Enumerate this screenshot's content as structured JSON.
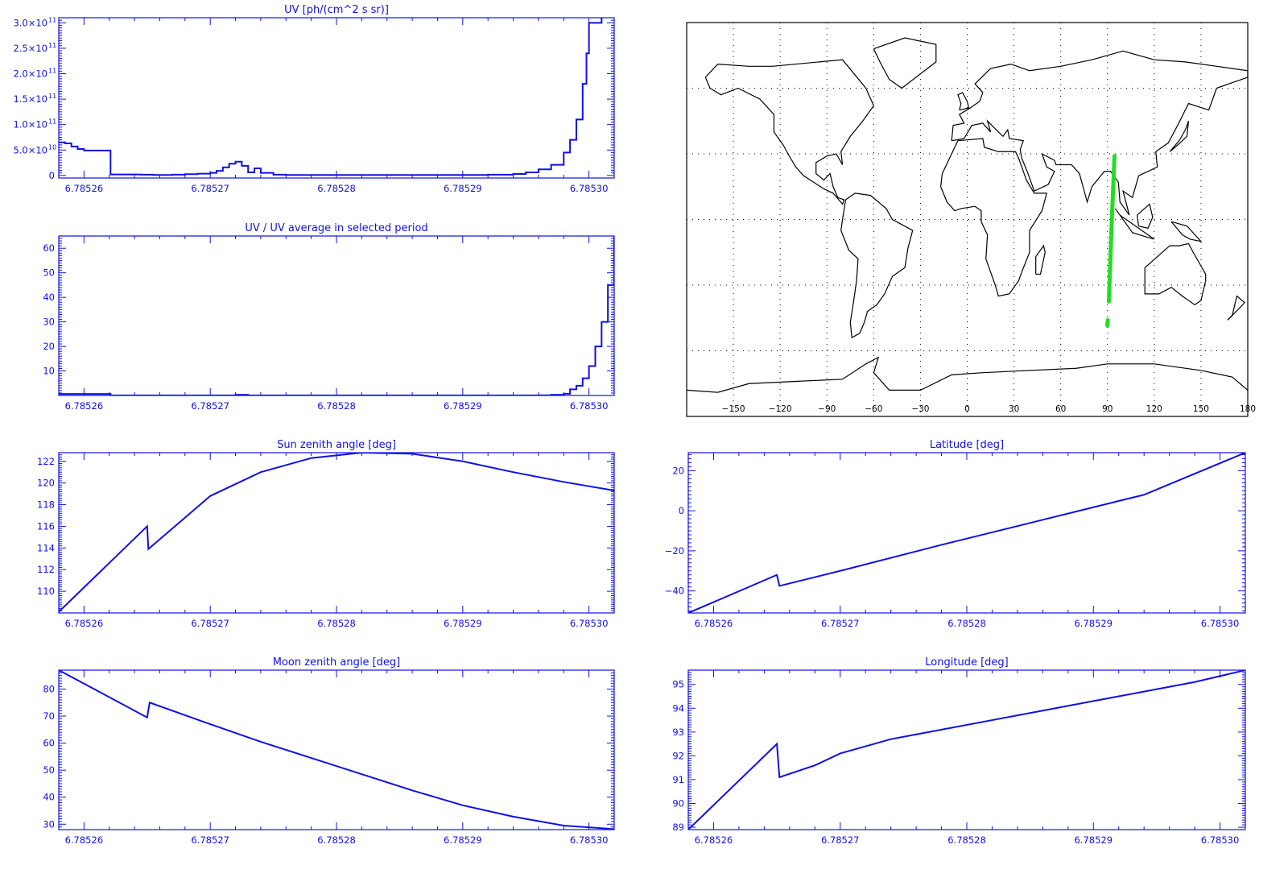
{
  "colors": {
    "axis": "#1010e6",
    "line": "#1010e6",
    "track": "#22dd22",
    "map_lines": "#000000"
  },
  "chart_data": [
    {
      "id": "uv",
      "type": "line",
      "title": "UV [ph/(cm^2 s sr)]",
      "xlim": [
        6.785258,
        6.785302
      ],
      "ylim": [
        -5000000000.0,
        310000000000.0
      ],
      "xticks": [
        6.78526,
        6.78527,
        6.78528,
        6.78529,
        6.7853
      ],
      "xtick_labels": [
        "6.78526",
        "6.78527",
        "6.78528",
        "6.78529",
        "6.78530"
      ],
      "yticks": [
        0,
        50000000000.0,
        100000000000.0,
        150000000000.0,
        200000000000.0,
        250000000000.0,
        300000000000.0
      ],
      "ytick_labels": [
        "0",
        "5.0×10",
        "1.0×10",
        "1.5×10",
        "2.0×10",
        "2.5×10",
        "3.0×10"
      ],
      "ytick_exps": [
        "",
        "10",
        "11",
        "11",
        "11",
        "11",
        "11"
      ],
      "step": true,
      "series": [
        {
          "points": [
            [
              6.785258,
              65000000000.0
            ],
            [
              6.7852585,
              63000000000.0
            ],
            [
              6.785259,
              57000000000.0
            ],
            [
              6.7852595,
              52000000000.0
            ],
            [
              6.78526,
              49000000000.0
            ],
            [
              6.785262,
              49000000000.0
            ],
            [
              6.7852621,
              2000000000.0
            ],
            [
              6.7852645,
              1500000000.0
            ],
            [
              6.7852655,
              1000000000.0
            ],
            [
              6.785267,
              1500000000.0
            ],
            [
              6.785268,
              2500000000.0
            ],
            [
              6.785269,
              3500000000.0
            ],
            [
              6.78527,
              5000000000.0
            ],
            [
              6.7852705,
              9000000000.0
            ],
            [
              6.785271,
              16000000000.0
            ],
            [
              6.7852715,
              23000000000.0
            ],
            [
              6.785272,
              27000000000.0
            ],
            [
              6.7852725,
              19000000000.0
            ],
            [
              6.785273,
              6000000000.0
            ],
            [
              6.7852735,
              14000000000.0
            ],
            [
              6.785274,
              5000000000.0
            ],
            [
              6.785275,
              1500000000.0
            ],
            [
              6.785276,
              1000000000.0
            ],
            [
              6.785285,
              1000000000.0
            ],
            [
              6.785292,
              1500000000.0
            ],
            [
              6.785294,
              3000000000.0
            ],
            [
              6.785295,
              6000000000.0
            ],
            [
              6.785296,
              12000000000.0
            ],
            [
              6.785297,
              21000000000.0
            ],
            [
              6.785298,
              45000000000.0
            ],
            [
              6.7852985,
              70000000000.0
            ],
            [
              6.785299,
              110000000000.0
            ],
            [
              6.7852995,
              180000000000.0
            ],
            [
              6.7852998,
              240000000000.0
            ],
            [
              6.7853,
              300000000000.0
            ],
            [
              6.785301,
              310000000000.0
            ]
          ]
        }
      ]
    },
    {
      "id": "uvratio",
      "type": "line",
      "title": "UV / UV average in selected period",
      "xlim": [
        6.785258,
        6.785302
      ],
      "ylim": [
        0,
        65
      ],
      "xticks": [
        6.78526,
        6.78527,
        6.78528,
        6.78529,
        6.7853
      ],
      "xtick_labels": [
        "6.78526",
        "6.78527",
        "6.78528",
        "6.78529",
        "6.78530"
      ],
      "yticks": [
        10,
        20,
        30,
        40,
        50,
        60
      ],
      "ytick_labels": [
        "10",
        "20",
        "30",
        "40",
        "50",
        "60"
      ],
      "step": true,
      "series": [
        {
          "points": [
            [
              6.785258,
              0.6
            ],
            [
              6.785262,
              0.6
            ],
            [
              6.7852621,
              0.05
            ],
            [
              6.785272,
              0.3
            ],
            [
              6.785273,
              0.05
            ],
            [
              6.785296,
              0.1
            ],
            [
              6.785297,
              0.3
            ],
            [
              6.785298,
              0.7
            ],
            [
              6.7852985,
              2.5
            ],
            [
              6.785299,
              4
            ],
            [
              6.7852995,
              7
            ],
            [
              6.7853,
              12
            ],
            [
              6.7853005,
              20
            ],
            [
              6.785301,
              30
            ],
            [
              6.7853015,
              45
            ],
            [
              6.785302,
              65
            ]
          ]
        }
      ]
    },
    {
      "id": "sunzen",
      "type": "line",
      "title": "Sun zenith angle [deg]",
      "xlim": [
        6.785258,
        6.785302
      ],
      "ylim": [
        108,
        122.8
      ],
      "xticks": [
        6.78526,
        6.78527,
        6.78528,
        6.78529,
        6.7853
      ],
      "xtick_labels": [
        "6.78526",
        "6.78527",
        "6.78528",
        "6.78529",
        "6.78530"
      ],
      "yticks": [
        110,
        112,
        114,
        116,
        118,
        120,
        122
      ],
      "ytick_labels": [
        "110",
        "112",
        "114",
        "116",
        "118",
        "120",
        "122"
      ],
      "series": [
        {
          "points": [
            [
              6.785258,
              108.1
            ],
            [
              6.785265,
              116.0
            ],
            [
              6.7852651,
              113.9
            ],
            [
              6.785267,
              115.8
            ],
            [
              6.78527,
              118.8
            ],
            [
              6.785274,
              121.0
            ],
            [
              6.785278,
              122.3
            ],
            [
              6.785282,
              122.8
            ],
            [
              6.785286,
              122.7
            ],
            [
              6.78529,
              122.0
            ],
            [
              6.785294,
              121.0
            ],
            [
              6.785298,
              120.1
            ],
            [
              6.785302,
              119.3
            ]
          ]
        }
      ]
    },
    {
      "id": "moonzen",
      "type": "line",
      "title": "Moon zenith angle [deg]",
      "xlim": [
        6.785258,
        6.785302
      ],
      "ylim": [
        28,
        87
      ],
      "xticks": [
        6.78526,
        6.78527,
        6.78528,
        6.78529,
        6.7853
      ],
      "xtick_labels": [
        "6.78526",
        "6.78527",
        "6.78528",
        "6.78529",
        "6.78530"
      ],
      "yticks": [
        30,
        40,
        50,
        60,
        70,
        80
      ],
      "ytick_labels": [
        "30",
        "40",
        "50",
        "60",
        "70",
        "80"
      ],
      "series": [
        {
          "points": [
            [
              6.785258,
              87.0
            ],
            [
              6.785265,
              69.5
            ],
            [
              6.7852652,
              75.0
            ],
            [
              6.78527,
              67.0
            ],
            [
              6.785274,
              60.5
            ],
            [
              6.785278,
              54.5
            ],
            [
              6.785282,
              48.5
            ],
            [
              6.785286,
              42.5
            ],
            [
              6.78529,
              37.0
            ],
            [
              6.785294,
              32.8
            ],
            [
              6.785298,
              29.5
            ],
            [
              6.785302,
              28.2
            ]
          ]
        }
      ]
    },
    {
      "id": "lat",
      "type": "line",
      "title": "Latitude [deg]",
      "xlim": [
        6.785258,
        6.785302
      ],
      "ylim": [
        -51,
        29
      ],
      "xticks": [
        6.78526,
        6.78527,
        6.78528,
        6.78529,
        6.7853
      ],
      "xtick_labels": [
        "6.78526",
        "6.78527",
        "6.78528",
        "6.78529",
        "6.78530"
      ],
      "yticks": [
        -40,
        -20,
        0,
        20
      ],
      "ytick_labels": [
        "−40",
        "−20",
        "0",
        "20"
      ],
      "series": [
        {
          "points": [
            [
              6.785258,
              -51.0
            ],
            [
              6.785265,
              -32.0
            ],
            [
              6.7852652,
              -37.5
            ],
            [
              6.78527,
              -30.0
            ],
            [
              6.785278,
              -17.0
            ],
            [
              6.785286,
              -4.5
            ],
            [
              6.785294,
              8.0
            ],
            [
              6.785302,
              29.0
            ]
          ]
        }
      ]
    },
    {
      "id": "lon",
      "type": "line",
      "title": "Longitude [deg]",
      "xlim": [
        6.785258,
        6.785302
      ],
      "ylim": [
        88.9,
        95.6
      ],
      "xticks": [
        6.78526,
        6.78527,
        6.78528,
        6.78529,
        6.7853
      ],
      "xtick_labels": [
        "6.78526",
        "6.78527",
        "6.78528",
        "6.78529",
        "6.78530"
      ],
      "yticks": [
        89,
        90,
        91,
        92,
        93,
        94,
        95
      ],
      "ytick_labels": [
        "89",
        "90",
        "91",
        "92",
        "93",
        "94",
        "95"
      ],
      "series": [
        {
          "points": [
            [
              6.785258,
              88.9
            ],
            [
              6.785265,
              92.5
            ],
            [
              6.7852652,
              91.1
            ],
            [
              6.785268,
              91.6
            ],
            [
              6.78527,
              92.1
            ],
            [
              6.785274,
              92.7
            ],
            [
              6.785278,
              93.1
            ],
            [
              6.785282,
              93.5
            ],
            [
              6.785286,
              93.9
            ],
            [
              6.78529,
              94.3
            ],
            [
              6.785294,
              94.7
            ],
            [
              6.785298,
              95.1
            ],
            [
              6.785302,
              95.6
            ]
          ]
        }
      ]
    },
    {
      "id": "map",
      "type": "scatter",
      "xlim": [
        -180,
        180
      ],
      "ylim": [
        -90,
        90
      ],
      "xticks": [
        -150,
        -120,
        -90,
        -60,
        -30,
        0,
        30,
        60,
        90,
        120,
        150,
        180
      ],
      "xtick_labels": [
        "−150",
        "−120",
        "−90",
        "−60",
        "−30",
        "0",
        "30",
        "60",
        "90",
        "120",
        "150",
        "180"
      ],
      "grid_lon": [
        -150,
        -120,
        -90,
        -60,
        -30,
        0,
        30,
        60,
        90,
        120,
        150
      ],
      "grid_lat": [
        -60,
        -30,
        0,
        30,
        60
      ],
      "series": [
        {
          "points": [
            [
              94.5,
              29.0
            ],
            [
              92.5,
              -5
            ],
            [
              90.9,
              -37.5
            ]
          ]
        },
        {
          "points": [
            [
              90.2,
              -46
            ],
            [
              89.9,
              -48.5
            ]
          ]
        }
      ]
    }
  ]
}
